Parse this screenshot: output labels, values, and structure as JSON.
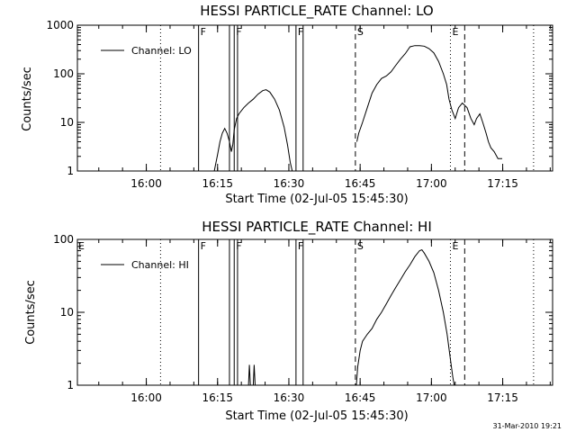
{
  "chart_data": [
    {
      "type": "line",
      "title": "HESSI PARTICLE_RATE Channel: LO",
      "xlabel": "Start Time (02-Jul-05 15:45:30)",
      "ylabel": "Counts/sec",
      "x_unit": "minutes after 15:45:30",
      "xlim": [
        0,
        100
      ],
      "ylim": [
        1,
        1000
      ],
      "y_scale": "log",
      "x_ticks": [
        {
          "label": "16:00",
          "x": 14.5
        },
        {
          "label": "16:15",
          "x": 29.5
        },
        {
          "label": "16:30",
          "x": 44.5
        },
        {
          "label": "16:45",
          "x": 59.5
        },
        {
          "label": "17:00",
          "x": 74.5
        },
        {
          "label": "17:15",
          "x": 89.5
        }
      ],
      "y_ticks": [
        {
          "label": "1",
          "y": 1
        },
        {
          "label": "10",
          "y": 10
        },
        {
          "label": "100",
          "y": 100
        },
        {
          "label": "1000",
          "y": 1000
        }
      ],
      "legend": {
        "label": "Channel: LO",
        "placement": "top-left"
      },
      "grid": false,
      "markers": [
        {
          "style": "dotted",
          "x": 17.5
        },
        {
          "style": "solid",
          "x": 25.5,
          "label": "F"
        },
        {
          "style": "solid",
          "x": 32.0
        },
        {
          "style": "solid",
          "x": 33.0,
          "label": "F"
        },
        {
          "style": "solid",
          "x": 33.7
        },
        {
          "style": "solid",
          "x": 46.0,
          "label": "F"
        },
        {
          "style": "solid",
          "x": 47.5
        },
        {
          "style": "dashed",
          "x": 58.5,
          "label": "S"
        },
        {
          "style": "dotted",
          "x": 78.5
        },
        {
          "style": "solid",
          "x": 78.5,
          "label": "E",
          "marker_only": true
        },
        {
          "style": "dashed",
          "x": 81.5
        },
        {
          "style": "dotted",
          "x": 96.0
        }
      ],
      "series": [
        {
          "name": "Channel: LO",
          "segments": [
            [
              [
                28.8,
                1
              ],
              [
                29.5,
                2.2
              ],
              [
                30.0,
                4.0
              ],
              [
                30.5,
                6.0
              ],
              [
                31.0,
                7.5
              ],
              [
                31.5,
                6.0
              ],
              [
                32.0,
                4.0
              ],
              [
                32.4,
                2.5
              ],
              [
                32.7,
                3.5
              ],
              [
                33.0,
                7.0
              ],
              [
                33.5,
                12
              ],
              [
                34.0,
                15
              ],
              [
                35.0,
                20
              ],
              [
                36.0,
                25
              ],
              [
                37.0,
                30
              ],
              [
                38.0,
                38
              ],
              [
                39.0,
                45
              ],
              [
                39.7,
                47
              ],
              [
                40.5,
                42
              ],
              [
                41.5,
                30
              ],
              [
                42.5,
                18
              ],
              [
                43.5,
                8
              ],
              [
                44.2,
                3.5
              ],
              [
                44.8,
                1.5
              ],
              [
                45.2,
                1
              ]
            ],
            [
              [
                58.8,
                4
              ],
              [
                59.2,
                6
              ],
              [
                60.0,
                10
              ],
              [
                61.0,
                20
              ],
              [
                62.0,
                40
              ],
              [
                63.0,
                60
              ],
              [
                64.0,
                80
              ],
              [
                65.0,
                90
              ],
              [
                66.0,
                110
              ],
              [
                67.0,
                150
              ],
              [
                68.0,
                200
              ],
              [
                69.0,
                260
              ],
              [
                70.0,
                360
              ],
              [
                71.0,
                380
              ],
              [
                72.0,
                380
              ],
              [
                73.0,
                370
              ],
              [
                74.0,
                330
              ],
              [
                75.0,
                270
              ],
              [
                76.0,
                180
              ],
              [
                77.0,
                100
              ],
              [
                77.7,
                60
              ],
              [
                78.2,
                30
              ],
              [
                78.8,
                18
              ],
              [
                79.5,
                12
              ],
              [
                80.2,
                20
              ],
              [
                81.0,
                25
              ],
              [
                82.0,
                20
              ],
              [
                82.8,
                12
              ],
              [
                83.5,
                9
              ],
              [
                84.0,
                12
              ],
              [
                84.7,
                15
              ],
              [
                85.3,
                10
              ],
              [
                86.0,
                6
              ],
              [
                86.5,
                4
              ],
              [
                87.0,
                3
              ],
              [
                87.7,
                2.5
              ],
              [
                88.5,
                1.8
              ],
              [
                89.4,
                1.8
              ]
            ]
          ]
        }
      ]
    },
    {
      "type": "line",
      "title": "HESSI PARTICLE_RATE Channel: HI",
      "xlabel": "Start Time (02-Jul-05 15:45:30)",
      "ylabel": "Counts/sec",
      "x_unit": "minutes after 15:45:30",
      "xlim": [
        0,
        100
      ],
      "ylim": [
        1,
        100
      ],
      "y_scale": "log",
      "x_ticks": [
        {
          "label": "16:00",
          "x": 14.5
        },
        {
          "label": "16:15",
          "x": 29.5
        },
        {
          "label": "16:30",
          "x": 44.5
        },
        {
          "label": "16:45",
          "x": 59.5
        },
        {
          "label": "17:00",
          "x": 74.5
        },
        {
          "label": "17:15",
          "x": 89.5
        }
      ],
      "y_ticks": [
        {
          "label": "1",
          "y": 1
        },
        {
          "label": "10",
          "y": 10
        },
        {
          "label": "100",
          "y": 100
        }
      ],
      "legend": {
        "label": "Channel: HI",
        "placement": "top-left"
      },
      "grid": false,
      "edge_flag": "E",
      "markers": [
        {
          "style": "dotted",
          "x": 17.5
        },
        {
          "style": "solid",
          "x": 25.5,
          "label": "F"
        },
        {
          "style": "solid",
          "x": 32.0
        },
        {
          "style": "solid",
          "x": 33.0,
          "label": "F"
        },
        {
          "style": "solid",
          "x": 33.7
        },
        {
          "style": "solid",
          "x": 46.0,
          "label": "F"
        },
        {
          "style": "solid",
          "x": 47.5
        },
        {
          "style": "dashed",
          "x": 58.5,
          "label": "S"
        },
        {
          "style": "dotted",
          "x": 78.5
        },
        {
          "style": "solid",
          "x": 78.5,
          "label": "E",
          "marker_only": true
        },
        {
          "style": "dashed",
          "x": 81.5
        },
        {
          "style": "dotted",
          "x": 96.0
        }
      ],
      "series": [
        {
          "name": "Channel: HI",
          "segments": [
            [
              [
                36.0,
                1
              ],
              [
                36.2,
                1.9
              ],
              [
                36.4,
                1
              ]
            ],
            [
              [
                37.0,
                1
              ],
              [
                37.2,
                1.9
              ],
              [
                37.4,
                1
              ]
            ],
            [
              [
                58.7,
                1
              ],
              [
                59.0,
                1.8
              ],
              [
                59.5,
                3
              ],
              [
                60.0,
                4
              ],
              [
                61.0,
                5
              ],
              [
                62.0,
                6
              ],
              [
                63.0,
                8
              ],
              [
                64.0,
                10
              ],
              [
                65.0,
                13
              ],
              [
                66.0,
                17
              ],
              [
                67.0,
                22
              ],
              [
                68.0,
                28
              ],
              [
                69.0,
                36
              ],
              [
                70.0,
                45
              ],
              [
                71.0,
                58
              ],
              [
                72.0,
                70
              ],
              [
                72.5,
                72
              ],
              [
                73.0,
                65
              ],
              [
                74.0,
                50
              ],
              [
                75.0,
                35
              ],
              [
                76.0,
                20
              ],
              [
                77.0,
                10
              ],
              [
                77.8,
                5
              ],
              [
                78.4,
                2.5
              ],
              [
                79.0,
                1.3
              ],
              [
                79.3,
                1
              ]
            ]
          ]
        }
      ]
    }
  ],
  "footer": {
    "timestamp": "31-Mar-2010 19:21"
  }
}
